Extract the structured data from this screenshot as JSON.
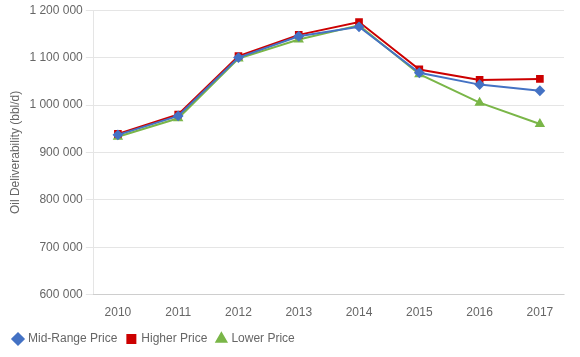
{
  "chart_data": {
    "type": "line",
    "x": [
      2010,
      2011,
      2012,
      2013,
      2014,
      2015,
      2016,
      2017
    ],
    "series": [
      {
        "name": "Mid-Range Price",
        "color": "#4472C4",
        "marker": "diamond",
        "values": [
          937000,
          977000,
          1100000,
          1145000,
          1165000,
          1068000,
          1043000,
          1030000
        ]
      },
      {
        "name": "Higher Price",
        "color": "#CC0000",
        "marker": "square",
        "values": [
          939000,
          980000,
          1103000,
          1148000,
          1175000,
          1075000,
          1053000,
          1055000
        ]
      },
      {
        "name": "Lower Price",
        "color": "#7AB648",
        "marker": "triangle",
        "values": [
          933000,
          972000,
          1098000,
          1138000,
          1168000,
          1065000,
          1005000,
          960000
        ]
      }
    ],
    "y_label": "Oil Deliverability (bbl/d)",
    "xlim": [
      2009.6,
      2017.4
    ],
    "xticks": [
      2010,
      2011,
      2012,
      2013,
      2014,
      2015,
      2016,
      2017
    ],
    "ylim": [
      600000,
      1200000
    ],
    "yticks": [
      {
        "value": 600000,
        "label": "600 000"
      },
      {
        "value": 700000,
        "label": "700 000"
      },
      {
        "value": 800000,
        "label": "800 000"
      },
      {
        "value": 900000,
        "label": "900 000"
      },
      {
        "value": 1000000,
        "label": "1 000 000"
      },
      {
        "value": 1100000,
        "label": "1 100 000"
      },
      {
        "value": 1200000,
        "label": "1 200 000"
      }
    ],
    "grid": "y",
    "legend": "lower left"
  }
}
